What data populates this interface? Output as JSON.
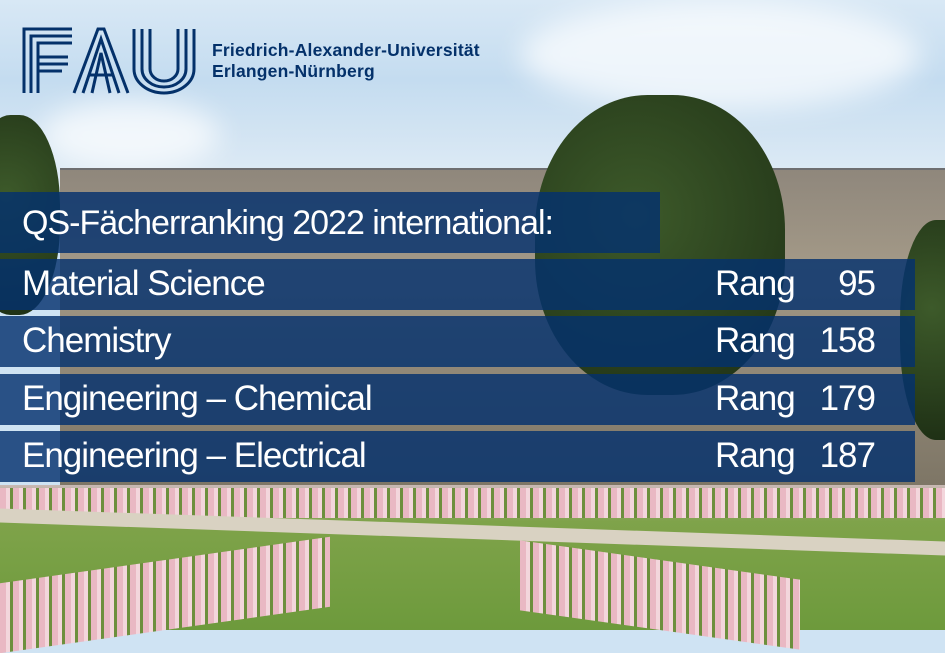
{
  "logo": {
    "wordmark": "FAU",
    "university_line1": "Friedrich-Alexander-Universität",
    "university_line2": "Erlangen-Nürnberg",
    "color": "#04316a"
  },
  "headline": "QS-Fächerranking 2022 international:",
  "band_color": "#04316a",
  "rankings": [
    {
      "subject": "Material Science",
      "label": "Rang",
      "rank": "95"
    },
    {
      "subject": "Chemistry",
      "label": "Rang",
      "rank": "158"
    },
    {
      "subject": "Engineering – Chemical",
      "label": "Rang",
      "rank": "179"
    },
    {
      "subject": "Engineering – Electrical",
      "label": "Rang",
      "rank": "187"
    }
  ]
}
